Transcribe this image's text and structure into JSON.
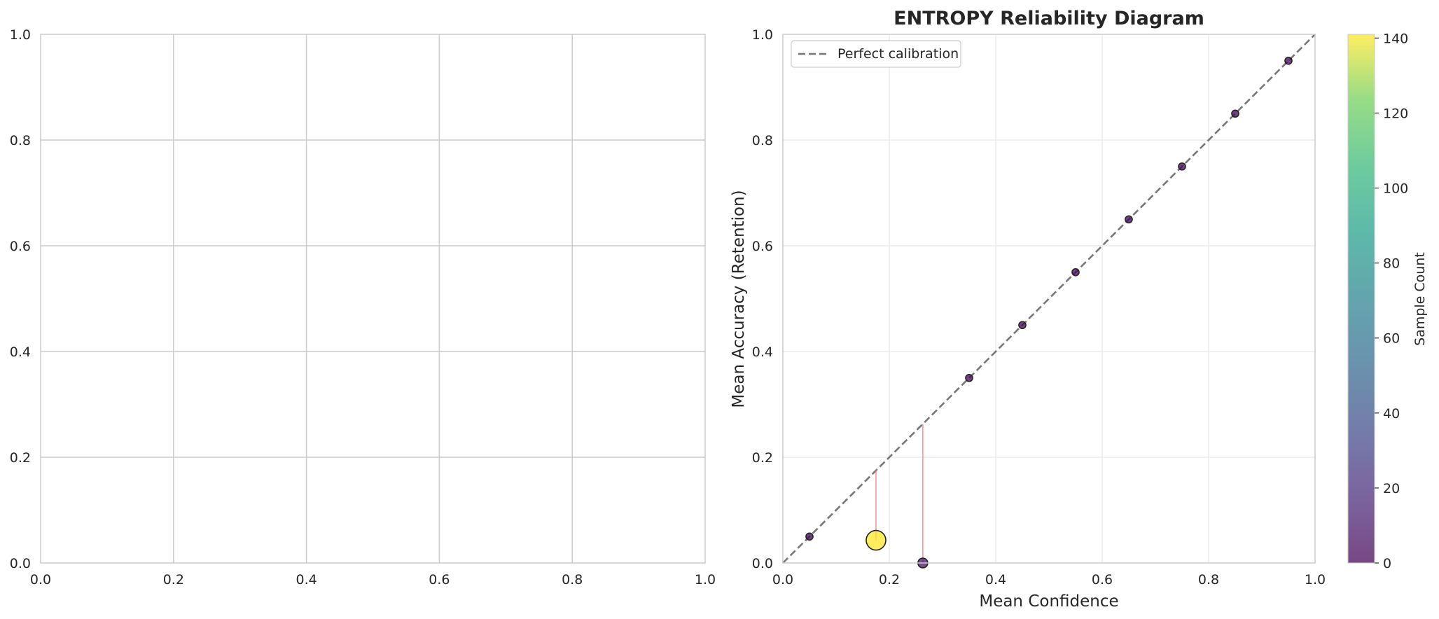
{
  "colors": {
    "grid_left": "#cccccc",
    "grid_right": "#ebebeb",
    "spine": "#cccccc",
    "diagonal": "#777777",
    "gap_line": "#f08080",
    "point_edge": "#222222",
    "text": "#262626"
  },
  "chart_data": [
    {
      "type": "scatter",
      "title": "",
      "xlabel": "",
      "ylabel": "",
      "xlim": [
        0,
        1
      ],
      "ylim": [
        0,
        1
      ],
      "xticks": [
        "0.0",
        "0.2",
        "0.4",
        "0.6",
        "0.8",
        "1.0"
      ],
      "yticks": [
        "0.0",
        "0.2",
        "0.4",
        "0.6",
        "0.8",
        "1.0"
      ],
      "grid": true,
      "series": []
    },
    {
      "type": "scatter",
      "title": "ENTROPY Reliability Diagram",
      "xlabel": "Mean Confidence",
      "ylabel": "Mean Accuracy (Retention)",
      "xlim": [
        0,
        1
      ],
      "ylim": [
        0,
        1
      ],
      "xticks": [
        "0.0",
        "0.2",
        "0.4",
        "0.6",
        "0.8",
        "1.0"
      ],
      "yticks": [
        "0.0",
        "0.2",
        "0.4",
        "0.6",
        "0.8",
        "1.0"
      ],
      "grid": true,
      "legend": {
        "position": "top-left",
        "entries": [
          "Perfect calibration"
        ]
      },
      "reference_line": {
        "name": "Perfect calibration",
        "x": [
          0,
          1
        ],
        "y": [
          0,
          1
        ],
        "style": "dashed"
      },
      "points": [
        {
          "x": 0.05,
          "y": 0.05,
          "count": 1
        },
        {
          "x": 0.175,
          "y": 0.043,
          "count": 141
        },
        {
          "x": 0.263,
          "y": 0.0,
          "count": 8
        },
        {
          "x": 0.35,
          "y": 0.35,
          "count": 1
        },
        {
          "x": 0.45,
          "y": 0.45,
          "count": 1
        },
        {
          "x": 0.55,
          "y": 0.55,
          "count": 1
        },
        {
          "x": 0.65,
          "y": 0.65,
          "count": 1
        },
        {
          "x": 0.75,
          "y": 0.75,
          "count": 1
        },
        {
          "x": 0.85,
          "y": 0.85,
          "count": 1
        },
        {
          "x": 0.95,
          "y": 0.95,
          "count": 1
        }
      ],
      "colorbar": {
        "label": "Sample Count",
        "colormap": "viridis",
        "range": [
          0,
          141
        ],
        "ticks": [
          "0",
          "20",
          "40",
          "60",
          "80",
          "100",
          "120",
          "140"
        ]
      }
    }
  ]
}
